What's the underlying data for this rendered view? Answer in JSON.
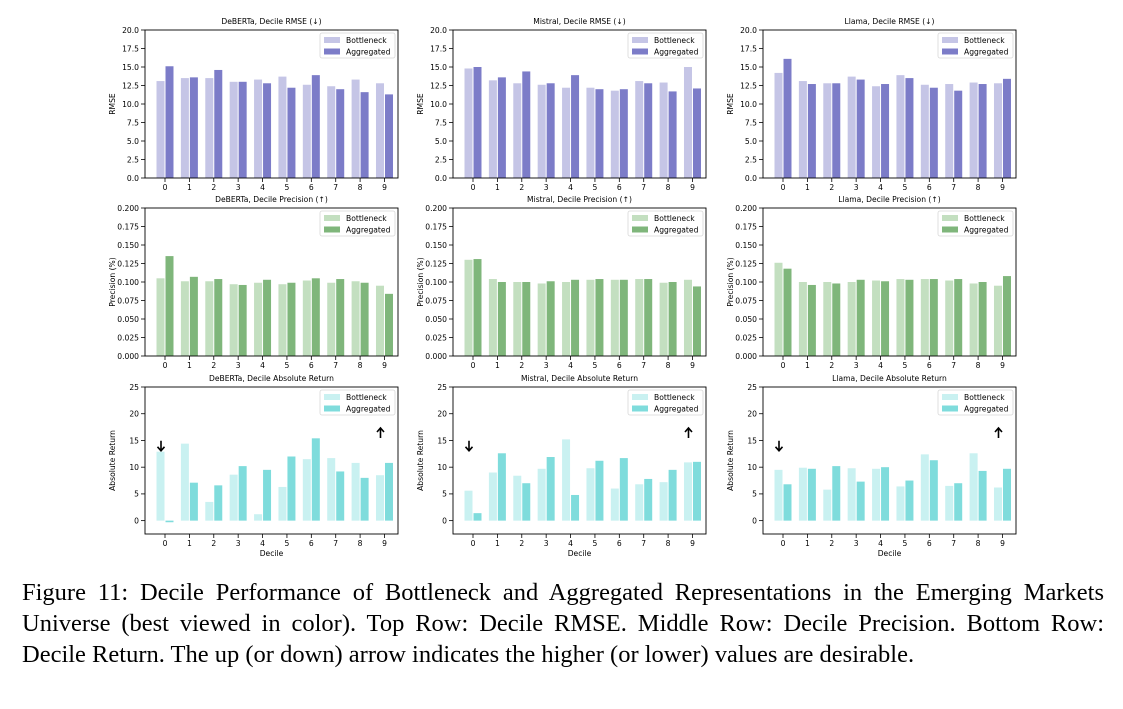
{
  "figure": {
    "caption": "Figure 11: Decile Performance of Bottleneck and Aggregated Representations in the Emerging Markets Universe (best viewed in color). Top Row: Decile RMSE. Middle Row: Decile Precision. Bottom Row: Decile Return. The up (or down) arrow indicates the higher (or lower) values are desirable.",
    "colors": {
      "rmse_bottleneck": "#c5c5e6",
      "rmse_aggregated": "#7c7cc8",
      "precision_bottleneck": "#c3dfc0",
      "precision_aggregated": "#7fb67b",
      "return_bottleneck": "#c9f1f1",
      "return_aggregated": "#7fdcdc"
    }
  },
  "chart_data": [
    {
      "type": "bar",
      "panel": "rmse",
      "title": "DeBERTa, Decile RMSE (↓)",
      "ylabel": "RMSE",
      "xlabel": "",
      "ylim": [
        0,
        20
      ],
      "yticks": [
        0.0,
        2.5,
        5.0,
        7.5,
        10.0,
        12.5,
        15.0,
        17.5,
        20.0
      ],
      "tick_decimals": 1,
      "categories": [
        "0",
        "1",
        "2",
        "3",
        "4",
        "5",
        "6",
        "7",
        "8",
        "9"
      ],
      "legend": "top-right",
      "series": [
        {
          "name": "Bottleneck",
          "values": [
            13.1,
            13.5,
            13.5,
            13.0,
            13.3,
            13.7,
            12.6,
            12.4,
            13.3,
            12.8
          ]
        },
        {
          "name": "Aggregated",
          "values": [
            15.1,
            13.6,
            14.6,
            13.0,
            12.8,
            12.2,
            13.9,
            12.0,
            11.6,
            11.3
          ]
        }
      ]
    },
    {
      "type": "bar",
      "panel": "rmse",
      "title": "Mistral, Decile RMSE (↓)",
      "ylabel": "RMSE",
      "xlabel": "",
      "ylim": [
        0,
        20
      ],
      "yticks": [
        0.0,
        2.5,
        5.0,
        7.5,
        10.0,
        12.5,
        15.0,
        17.5,
        20.0
      ],
      "tick_decimals": 1,
      "categories": [
        "0",
        "1",
        "2",
        "3",
        "4",
        "5",
        "6",
        "7",
        "8",
        "9"
      ],
      "legend": "top-right",
      "series": [
        {
          "name": "Bottleneck",
          "values": [
            14.8,
            13.2,
            12.8,
            12.6,
            12.2,
            12.2,
            11.8,
            13.1,
            12.9,
            15.0
          ]
        },
        {
          "name": "Aggregated",
          "values": [
            15.0,
            13.6,
            14.4,
            12.8,
            13.9,
            12.0,
            12.0,
            12.8,
            11.7,
            12.1
          ]
        }
      ]
    },
    {
      "type": "bar",
      "panel": "rmse",
      "title": "Llama, Decile RMSE (↓)",
      "ylabel": "RMSE",
      "xlabel": "",
      "ylim": [
        0,
        20
      ],
      "yticks": [
        0.0,
        2.5,
        5.0,
        7.5,
        10.0,
        12.5,
        15.0,
        17.5,
        20.0
      ],
      "tick_decimals": 1,
      "categories": [
        "0",
        "1",
        "2",
        "3",
        "4",
        "5",
        "6",
        "7",
        "8",
        "9"
      ],
      "legend": "top-right",
      "series": [
        {
          "name": "Bottleneck",
          "values": [
            14.2,
            13.1,
            12.8,
            13.7,
            12.4,
            13.9,
            12.6,
            12.7,
            12.9,
            12.8
          ]
        },
        {
          "name": "Aggregated",
          "values": [
            16.1,
            12.7,
            12.8,
            13.3,
            12.7,
            13.5,
            12.2,
            11.8,
            12.7,
            13.4
          ]
        }
      ]
    },
    {
      "type": "bar",
      "panel": "precision",
      "title": "DeBERTa, Decile Precision (↑)",
      "ylabel": "Precision (%)",
      "xlabel": "",
      "ylim": [
        0,
        0.2
      ],
      "yticks": [
        0.0,
        0.025,
        0.05,
        0.075,
        0.1,
        0.125,
        0.15,
        0.175,
        0.2
      ],
      "tick_decimals": 3,
      "categories": [
        "0",
        "1",
        "2",
        "3",
        "4",
        "5",
        "6",
        "7",
        "8",
        "9"
      ],
      "legend": "top-right",
      "series": [
        {
          "name": "Bottleneck",
          "values": [
            0.105,
            0.101,
            0.101,
            0.097,
            0.099,
            0.097,
            0.102,
            0.099,
            0.101,
            0.095
          ]
        },
        {
          "name": "Aggregated",
          "values": [
            0.135,
            0.107,
            0.104,
            0.096,
            0.103,
            0.099,
            0.105,
            0.104,
            0.099,
            0.084
          ]
        }
      ]
    },
    {
      "type": "bar",
      "panel": "precision",
      "title": "Mistral, Decile Precision (↑)",
      "ylabel": "Precision (%)",
      "xlabel": "",
      "ylim": [
        0,
        0.2
      ],
      "yticks": [
        0.0,
        0.025,
        0.05,
        0.075,
        0.1,
        0.125,
        0.15,
        0.175,
        0.2
      ],
      "tick_decimals": 3,
      "categories": [
        "0",
        "1",
        "2",
        "3",
        "4",
        "5",
        "6",
        "7",
        "8",
        "9"
      ],
      "legend": "top-right",
      "series": [
        {
          "name": "Bottleneck",
          "values": [
            0.13,
            0.104,
            0.1,
            0.098,
            0.1,
            0.103,
            0.103,
            0.104,
            0.099,
            0.103
          ]
        },
        {
          "name": "Aggregated",
          "values": [
            0.131,
            0.1,
            0.1,
            0.101,
            0.103,
            0.104,
            0.103,
            0.104,
            0.1,
            0.094
          ]
        }
      ]
    },
    {
      "type": "bar",
      "panel": "precision",
      "title": "Llama, Decile Precision (↑)",
      "ylabel": "Precision (%)",
      "xlabel": "",
      "ylim": [
        0,
        0.2
      ],
      "yticks": [
        0.0,
        0.025,
        0.05,
        0.075,
        0.1,
        0.125,
        0.15,
        0.175,
        0.2
      ],
      "tick_decimals": 3,
      "categories": [
        "0",
        "1",
        "2",
        "3",
        "4",
        "5",
        "6",
        "7",
        "8",
        "9"
      ],
      "legend": "top-right",
      "series": [
        {
          "name": "Bottleneck",
          "values": [
            0.126,
            0.1,
            0.1,
            0.1,
            0.102,
            0.104,
            0.104,
            0.102,
            0.098,
            0.095
          ]
        },
        {
          "name": "Aggregated",
          "values": [
            0.118,
            0.096,
            0.098,
            0.103,
            0.101,
            0.103,
            0.104,
            0.104,
            0.1,
            0.108
          ]
        }
      ]
    },
    {
      "type": "bar",
      "panel": "return",
      "title": "DeBERTa, Decile Absolute Return",
      "ylabel": "Absolute Return",
      "xlabel": "Decile",
      "ylim": [
        -2.5,
        25
      ],
      "yticks": [
        0,
        5,
        10,
        15,
        20,
        25
      ],
      "tick_decimals": 0,
      "categories": [
        "0",
        "1",
        "2",
        "3",
        "4",
        "5",
        "6",
        "7",
        "8",
        "9"
      ],
      "legend": "top-right",
      "arrows": [
        {
          "category": "0",
          "direction": "down",
          "value": 14.0
        },
        {
          "category": "9",
          "direction": "up",
          "value": 16.4
        }
      ],
      "series": [
        {
          "name": "Bottleneck",
          "values": [
            12.9,
            14.4,
            3.5,
            8.6,
            1.2,
            6.3,
            11.5,
            11.7,
            10.8,
            8.5
          ]
        },
        {
          "name": "Aggregated",
          "values": [
            -0.3,
            7.1,
            6.6,
            10.2,
            9.5,
            12.0,
            15.4,
            9.2,
            8.0,
            10.8
          ]
        }
      ]
    },
    {
      "type": "bar",
      "panel": "return",
      "title": "Mistral, Decile Absolute Return",
      "ylabel": "Absolute Return",
      "xlabel": "Decile",
      "ylim": [
        -2.5,
        25
      ],
      "yticks": [
        0,
        5,
        10,
        15,
        20,
        25
      ],
      "tick_decimals": 0,
      "categories": [
        "0",
        "1",
        "2",
        "3",
        "4",
        "5",
        "6",
        "7",
        "8",
        "9"
      ],
      "legend": "top-right",
      "arrows": [
        {
          "category": "0",
          "direction": "down",
          "value": 14.0
        },
        {
          "category": "9",
          "direction": "up",
          "value": 16.4
        }
      ],
      "series": [
        {
          "name": "Bottleneck",
          "values": [
            5.6,
            9.0,
            8.4,
            9.7,
            15.2,
            9.8,
            6.0,
            6.8,
            7.2,
            10.9
          ]
        },
        {
          "name": "Aggregated",
          "values": [
            1.4,
            12.6,
            7.0,
            11.9,
            4.8,
            11.2,
            11.7,
            7.8,
            9.5,
            11.0
          ]
        }
      ]
    },
    {
      "type": "bar",
      "panel": "return",
      "title": "Llama, Decile Absolute Return",
      "ylabel": "Absolute Return",
      "xlabel": "Decile",
      "ylim": [
        -2.5,
        25
      ],
      "yticks": [
        0,
        5,
        10,
        15,
        20,
        25
      ],
      "tick_decimals": 0,
      "categories": [
        "0",
        "1",
        "2",
        "3",
        "4",
        "5",
        "6",
        "7",
        "8",
        "9"
      ],
      "legend": "top-right",
      "arrows": [
        {
          "category": "0",
          "direction": "down",
          "value": 14.0
        },
        {
          "category": "9",
          "direction": "up",
          "value": 16.4
        }
      ],
      "series": [
        {
          "name": "Bottleneck",
          "values": [
            9.5,
            9.9,
            5.8,
            9.8,
            9.7,
            6.4,
            12.4,
            6.5,
            12.6,
            6.2
          ]
        },
        {
          "name": "Aggregated",
          "values": [
            6.8,
            9.7,
            10.2,
            7.3,
            10.0,
            7.5,
            11.3,
            7.0,
            9.3,
            9.7
          ]
        }
      ]
    }
  ]
}
